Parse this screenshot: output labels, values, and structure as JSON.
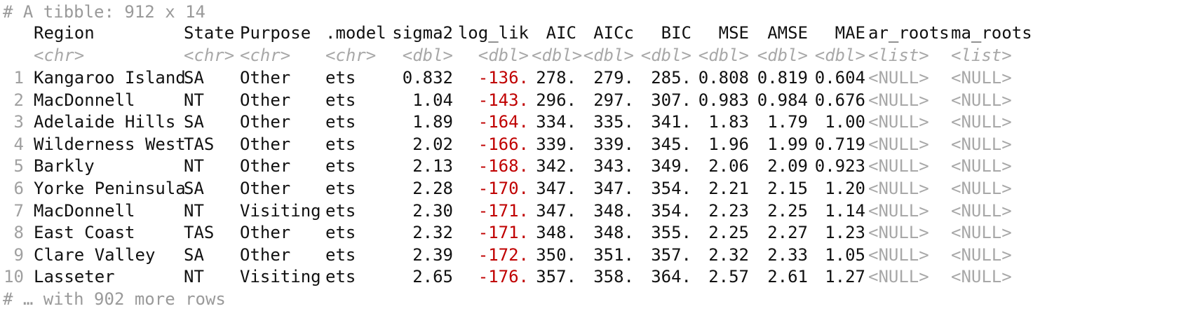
{
  "tibble_header": "# A tibble: 912 x 14",
  "footer": "# … with 902 more rows",
  "columns": [
    {
      "name": "Region",
      "type": "<chr>"
    },
    {
      "name": "State",
      "type": "<chr>"
    },
    {
      "name": "Purpose",
      "type": "<chr>"
    },
    {
      "name": ".model",
      "type": "<chr>"
    },
    {
      "name": "sigma2",
      "type": "<dbl>"
    },
    {
      "name": "log_lik",
      "type": "<dbl>"
    },
    {
      "name": "AIC",
      "type": "<dbl>"
    },
    {
      "name": "AICc",
      "type": "<dbl>"
    },
    {
      "name": "BIC",
      "type": "<dbl>"
    },
    {
      "name": "MSE",
      "type": "<dbl>"
    },
    {
      "name": "AMSE",
      "type": "<dbl>"
    },
    {
      "name": "MAE",
      "type": "<dbl>"
    },
    {
      "name": "ar_roots",
      "type": "<list>"
    },
    {
      "name": "ma_roots",
      "type": "<list>"
    }
  ],
  "rows": [
    {
      "n": "1",
      "cells": [
        "Kangaroo Island",
        "SA",
        "Other",
        "ets",
        "0.832",
        "-136.",
        "278.",
        "279.",
        "285.",
        "0.808",
        "0.819",
        "0.604",
        "<NULL>",
        "<NULL>"
      ]
    },
    {
      "n": "2",
      "cells": [
        "MacDonnell",
        "NT",
        "Other",
        "ets",
        "1.04",
        "-143.",
        "296.",
        "297.",
        "307.",
        "0.983",
        "0.984",
        "0.676",
        "<NULL>",
        "<NULL>"
      ]
    },
    {
      "n": "3",
      "cells": [
        "Adelaide Hills",
        "SA",
        "Other",
        "ets",
        "1.89",
        "-164.",
        "334.",
        "335.",
        "341.",
        "1.83",
        "1.79",
        "1.00",
        "<NULL>",
        "<NULL>"
      ]
    },
    {
      "n": "4",
      "cells": [
        "Wilderness West",
        "TAS",
        "Other",
        "ets",
        "2.02",
        "-166.",
        "339.",
        "339.",
        "345.",
        "1.96",
        "1.99",
        "0.719",
        "<NULL>",
        "<NULL>"
      ]
    },
    {
      "n": "5",
      "cells": [
        "Barkly",
        "NT",
        "Other",
        "ets",
        "2.13",
        "-168.",
        "342.",
        "343.",
        "349.",
        "2.06",
        "2.09",
        "0.923",
        "<NULL>",
        "<NULL>"
      ]
    },
    {
      "n": "6",
      "cells": [
        "Yorke Peninsula",
        "SA",
        "Other",
        "ets",
        "2.28",
        "-170.",
        "347.",
        "347.",
        "354.",
        "2.21",
        "2.15",
        "1.20",
        "<NULL>",
        "<NULL>"
      ]
    },
    {
      "n": "7",
      "cells": [
        "MacDonnell",
        "NT",
        "Visiting",
        "ets",
        "2.30",
        "-171.",
        "347.",
        "348.",
        "354.",
        "2.23",
        "2.25",
        "1.14",
        "<NULL>",
        "<NULL>"
      ]
    },
    {
      "n": "8",
      "cells": [
        "East Coast",
        "TAS",
        "Other",
        "ets",
        "2.32",
        "-171.",
        "348.",
        "348.",
        "355.",
        "2.25",
        "2.27",
        "1.23",
        "<NULL>",
        "<NULL>"
      ]
    },
    {
      "n": "9",
      "cells": [
        "Clare Valley",
        "SA",
        "Other",
        "ets",
        "2.39",
        "-172.",
        "350.",
        "351.",
        "357.",
        "2.32",
        "2.33",
        "1.05",
        "<NULL>",
        "<NULL>"
      ]
    },
    {
      "n": "10",
      "cells": [
        "Lasseter",
        "NT",
        "Visiting",
        "ets",
        "2.65",
        "-176.",
        "357.",
        "358.",
        "364.",
        "2.57",
        "2.61",
        "1.27",
        "<NULL>",
        "<NULL>"
      ]
    }
  ],
  "colors": {
    "text": "#111111",
    "negative": "#c00000",
    "muted": "#a0a0a0"
  }
}
